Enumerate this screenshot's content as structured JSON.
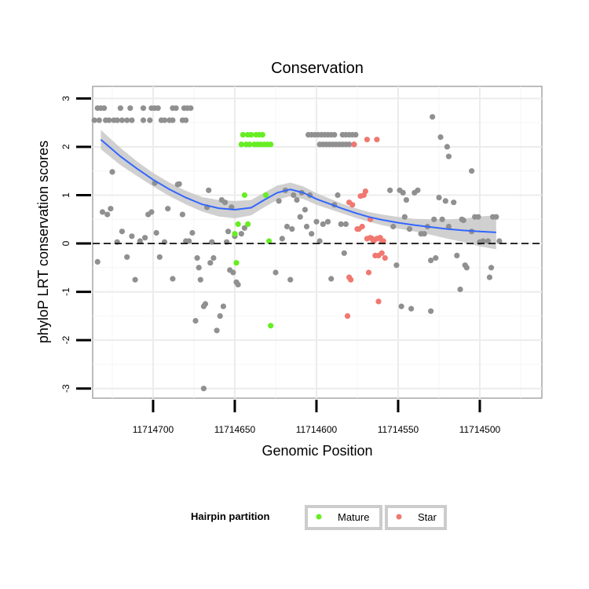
{
  "chart_data": {
    "type": "scatter",
    "title": "Conservation",
    "xlabel": "Genomic Position",
    "ylabel": "phyloP LRT conservation scores",
    "x_reversed": true,
    "xlim": [
      11714737,
      11714462
    ],
    "ylim": [
      -3.2,
      3.25
    ],
    "x_ticks": [
      11714700,
      11714650,
      11714600,
      11714550,
      11714500
    ],
    "x_tick_labels": [
      "11714700",
      "11714650",
      "11714600",
      "11714550",
      "11714500"
    ],
    "y_ticks": [
      3,
      2,
      1,
      0,
      -1,
      -2,
      -3
    ],
    "y_tick_labels": [
      "3",
      "2",
      "1",
      "0",
      "-1",
      "-2",
      "-3"
    ],
    "reference_line": {
      "y": 0,
      "style": "dashed"
    },
    "colors": {
      "Other": "#909090",
      "Mature": "#66ee22",
      "Star": "#f07870",
      "smooth": "#3366ff",
      "ribbon": "#c8c8c8"
    },
    "legend": {
      "title": "Hairpin partition",
      "placement": "bottom",
      "entries": [
        {
          "label": "Mature",
          "color": "#66ee22"
        },
        {
          "label": "Star",
          "color": "#f07870"
        }
      ]
    },
    "series": [
      {
        "name": "Other",
        "points": [
          [
            11714734,
            2.8
          ],
          [
            11714732,
            2.8
          ],
          [
            11714730,
            2.8
          ],
          [
            11714720,
            2.8
          ],
          [
            11714714,
            2.8
          ],
          [
            11714706,
            2.8
          ],
          [
            11714701,
            2.8
          ],
          [
            11714699,
            2.8
          ],
          [
            11714697,
            2.8
          ],
          [
            11714688,
            2.8
          ],
          [
            11714686,
            2.8
          ],
          [
            11714681,
            2.8
          ],
          [
            11714679,
            2.8
          ],
          [
            11714677,
            2.8
          ],
          [
            11714736,
            2.55
          ],
          [
            11714733,
            2.55
          ],
          [
            11714729,
            2.55
          ],
          [
            11714727,
            2.55
          ],
          [
            11714724,
            2.55
          ],
          [
            11714722,
            2.55
          ],
          [
            11714719,
            2.55
          ],
          [
            11714716,
            2.55
          ],
          [
            11714713,
            2.55
          ],
          [
            11714706,
            2.55
          ],
          [
            11714702,
            2.55
          ],
          [
            11714695,
            2.55
          ],
          [
            11714693,
            2.55
          ],
          [
            11714690,
            2.55
          ],
          [
            11714688,
            2.55
          ],
          [
            11714682,
            2.55
          ],
          [
            11714680,
            2.55
          ],
          [
            11714605,
            2.25
          ],
          [
            11714603,
            2.25
          ],
          [
            11714601,
            2.25
          ],
          [
            11714599,
            2.25
          ],
          [
            11714597,
            2.25
          ],
          [
            11714595,
            2.25
          ],
          [
            11714593,
            2.25
          ],
          [
            11714591,
            2.25
          ],
          [
            11714589,
            2.25
          ],
          [
            11714584,
            2.25
          ],
          [
            11714582,
            2.25
          ],
          [
            11714580,
            2.25
          ],
          [
            11714578,
            2.25
          ],
          [
            11714576,
            2.25
          ],
          [
            11714598,
            2.05
          ],
          [
            11714596,
            2.05
          ],
          [
            11714594,
            2.05
          ],
          [
            11714592,
            2.05
          ],
          [
            11714590,
            2.05
          ],
          [
            11714588,
            2.05
          ],
          [
            11714586,
            2.05
          ],
          [
            11714584,
            2.05
          ],
          [
            11714582,
            2.05
          ],
          [
            11714580,
            2.05
          ],
          [
            11714577,
            2.05
          ],
          [
            11714529,
            2.62
          ],
          [
            11714524,
            2.2
          ],
          [
            11714520,
            2.0
          ],
          [
            11714519,
            1.8
          ],
          [
            11714505,
            1.5
          ],
          [
            11714725,
            1.48
          ],
          [
            11714734,
            -0.38
          ],
          [
            11714731,
            0.65
          ],
          [
            11714728,
            0.6
          ],
          [
            11714726,
            0.72
          ],
          [
            11714722,
            0.03
          ],
          [
            11714719,
            0.25
          ],
          [
            11714716,
            -0.28
          ],
          [
            11714713,
            0.15
          ],
          [
            11714711,
            -0.75
          ],
          [
            11714708,
            0.05
          ],
          [
            11714705,
            0.12
          ],
          [
            11714703,
            0.6
          ],
          [
            11714701,
            0.65
          ],
          [
            11714699,
            1.25
          ],
          [
            11714698,
            0.22
          ],
          [
            11714696,
            -0.28
          ],
          [
            11714693,
            0.03
          ],
          [
            11714691,
            0.72
          ],
          [
            11714688,
            -0.73
          ],
          [
            11714685,
            1.22
          ],
          [
            11714684,
            1.23
          ],
          [
            11714682,
            0.6
          ],
          [
            11714680,
            0.05
          ],
          [
            11714678,
            0.05
          ],
          [
            11714676,
            0.22
          ],
          [
            11714674,
            -1.6
          ],
          [
            11714673,
            -0.3
          ],
          [
            11714672,
            -0.5
          ],
          [
            11714671,
            -0.75
          ],
          [
            11714669,
            -1.3
          ],
          [
            11714668,
            -1.25
          ],
          [
            11714667,
            0.75
          ],
          [
            11714666,
            1.1
          ],
          [
            11714665,
            -0.4
          ],
          [
            11714664,
            0.03
          ],
          [
            11714663,
            -0.3
          ],
          [
            11714661,
            -1.8
          ],
          [
            11714659,
            -1.5
          ],
          [
            11714658,
            0.9
          ],
          [
            11714657,
            -1.3
          ],
          [
            11714656,
            0.85
          ],
          [
            11714655,
            0.03
          ],
          [
            11714654,
            0.25
          ],
          [
            11714653,
            -0.55
          ],
          [
            11714652,
            0.75
          ],
          [
            11714651,
            -0.6
          ],
          [
            11714650,
            0.15
          ],
          [
            11714649,
            -0.8
          ],
          [
            11714648,
            -0.85
          ],
          [
            11714646,
            0.2
          ],
          [
            11714644,
            0.32
          ],
          [
            11714669,
            -3.0
          ],
          [
            11714625,
            -0.6
          ],
          [
            11714623,
            0.88
          ],
          [
            11714621,
            0.1
          ],
          [
            11714619,
            1.1
          ],
          [
            11714618,
            0.35
          ],
          [
            11714616,
            -0.75
          ],
          [
            11714615,
            0.3
          ],
          [
            11714614,
            1.0
          ],
          [
            11714612,
            0.9
          ],
          [
            11714610,
            0.55
          ],
          [
            11714609,
            1.05
          ],
          [
            11714607,
            0.7
          ],
          [
            11714606,
            0.35
          ],
          [
            11714604,
            1.0
          ],
          [
            11714603,
            0.2
          ],
          [
            11714600,
            0.45
          ],
          [
            11714598,
            0.05
          ],
          [
            11714596,
            0.4
          ],
          [
            11714593,
            0.45
          ],
          [
            11714591,
            -0.73
          ],
          [
            11714589,
            0.8
          ],
          [
            11714587,
            1.0
          ],
          [
            11714585,
            0.4
          ],
          [
            11714583,
            -0.2
          ],
          [
            11714582,
            0.4
          ],
          [
            11714555,
            1.1
          ],
          [
            11714553,
            0.35
          ],
          [
            11714551,
            -0.45
          ],
          [
            11714549,
            1.1
          ],
          [
            11714547,
            1.05
          ],
          [
            11714546,
            0.55
          ],
          [
            11714545,
            0.9
          ],
          [
            11714543,
            0.3
          ],
          [
            11714542,
            -1.35
          ],
          [
            11714540,
            1.05
          ],
          [
            11714538,
            1.1
          ],
          [
            11714536,
            0.2
          ],
          [
            11714534,
            0.2
          ],
          [
            11714532,
            0.35
          ],
          [
            11714530,
            -0.35
          ],
          [
            11714528,
            0.5
          ],
          [
            11714527,
            -0.3
          ],
          [
            11714525,
            0.95
          ],
          [
            11714523,
            0.5
          ],
          [
            11714521,
            0.88
          ],
          [
            11714519,
            0.35
          ],
          [
            11714516,
            0.85
          ],
          [
            11714514,
            -0.25
          ],
          [
            11714512,
            -0.95
          ],
          [
            11714511,
            0.5
          ],
          [
            11714510,
            0.48
          ],
          [
            11714509,
            -0.45
          ],
          [
            11714508,
            -0.5
          ],
          [
            11714505,
            0.25
          ],
          [
            11714503,
            0.55
          ],
          [
            11714501,
            0.55
          ],
          [
            11714500,
            0.03
          ],
          [
            11714498,
            0.05
          ],
          [
            11714495,
            0.05
          ],
          [
            11714494,
            -0.7
          ],
          [
            11714493,
            -0.5
          ],
          [
            11714492,
            0.55
          ],
          [
            11714490,
            0.55
          ],
          [
            11714488,
            0.05
          ],
          [
            11714530,
            -1.4
          ],
          [
            11714548,
            -1.3
          ]
        ]
      },
      {
        "name": "Mature",
        "points": [
          [
            11714645,
            2.25
          ],
          [
            11714642,
            2.25
          ],
          [
            11714640,
            2.25
          ],
          [
            11714637,
            2.25
          ],
          [
            11714635,
            2.25
          ],
          [
            11714633,
            2.25
          ],
          [
            11714646,
            2.05
          ],
          [
            11714643,
            2.05
          ],
          [
            11714641,
            2.05
          ],
          [
            11714638,
            2.05
          ],
          [
            11714636,
            2.05
          ],
          [
            11714634,
            2.05
          ],
          [
            11714632,
            2.05
          ],
          [
            11714630,
            2.05
          ],
          [
            11714628,
            2.05
          ],
          [
            11714644,
            1.0
          ],
          [
            11714631,
            1.0
          ],
          [
            11714650,
            0.2
          ],
          [
            11714649,
            -0.4
          ],
          [
            11714648,
            0.4
          ],
          [
            11714642,
            0.4
          ],
          [
            11714629,
            0.05
          ],
          [
            11714628,
            -1.7
          ]
        ]
      },
      {
        "name": "Star",
        "points": [
          [
            11714577,
            2.05
          ],
          [
            11714569,
            2.15
          ],
          [
            11714563,
            2.15
          ],
          [
            11714580,
            0.85
          ],
          [
            11714578,
            0.8
          ],
          [
            11714573,
            0.98
          ],
          [
            11714571,
            1.0
          ],
          [
            11714570,
            1.08
          ],
          [
            11714567,
            0.5
          ],
          [
            11714575,
            0.3
          ],
          [
            11714574,
            0.3
          ],
          [
            11714572,
            0.35
          ],
          [
            11714569,
            0.1
          ],
          [
            11714567,
            0.12
          ],
          [
            11714566,
            0.1
          ],
          [
            11714565,
            0.05
          ],
          [
            11714563,
            0.1
          ],
          [
            11714561,
            0.12
          ],
          [
            11714560,
            0.05
          ],
          [
            11714559,
            0.05
          ],
          [
            11714564,
            -0.25
          ],
          [
            11714562,
            -0.25
          ],
          [
            11714560,
            -0.2
          ],
          [
            11714558,
            -0.3
          ],
          [
            11714568,
            -0.6
          ],
          [
            11714580,
            -0.7
          ],
          [
            11714579,
            -0.75
          ],
          [
            11714562,
            -1.2
          ],
          [
            11714581,
            -1.5
          ]
        ]
      }
    ],
    "smooth_curve": {
      "x": [
        11714732,
        11714720,
        11714710,
        11714700,
        11714690,
        11714680,
        11714670,
        11714660,
        11714650,
        11714640,
        11714632,
        11714624,
        11714616,
        11714608,
        11714600,
        11714592,
        11714584,
        11714576,
        11714568,
        11714560,
        11714550,
        11714540,
        11714530,
        11714520,
        11714510,
        11714500,
        11714490
      ],
      "y": [
        2.15,
        1.8,
        1.55,
        1.32,
        1.12,
        0.95,
        0.81,
        0.73,
        0.7,
        0.74,
        0.9,
        1.05,
        1.12,
        1.05,
        0.92,
        0.82,
        0.72,
        0.63,
        0.55,
        0.49,
        0.43,
        0.38,
        0.34,
        0.3,
        0.27,
        0.25,
        0.23
      ],
      "lower": [
        1.95,
        1.62,
        1.4,
        1.18,
        0.98,
        0.81,
        0.66,
        0.56,
        0.52,
        0.58,
        0.75,
        0.9,
        0.98,
        0.92,
        0.8,
        0.71,
        0.62,
        0.53,
        0.45,
        0.38,
        0.31,
        0.25,
        0.18,
        0.1,
        0.03,
        -0.06,
        -0.12
      ],
      "upper": [
        2.35,
        1.98,
        1.7,
        1.46,
        1.26,
        1.09,
        0.96,
        0.9,
        0.88,
        0.9,
        1.05,
        1.2,
        1.26,
        1.18,
        1.04,
        0.93,
        0.82,
        0.73,
        0.65,
        0.6,
        0.55,
        0.51,
        0.5,
        0.5,
        0.51,
        0.56,
        0.58
      ]
    }
  }
}
